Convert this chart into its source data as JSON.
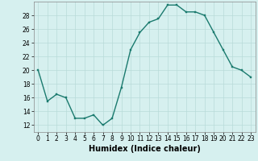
{
  "x": [
    0,
    1,
    2,
    3,
    4,
    5,
    6,
    7,
    8,
    9,
    10,
    11,
    12,
    13,
    14,
    15,
    16,
    17,
    18,
    19,
    20,
    21,
    22,
    23
  ],
  "y": [
    20,
    15.5,
    16.5,
    16,
    13,
    13,
    13.5,
    12,
    13,
    17.5,
    23,
    25.5,
    27,
    27.5,
    29.5,
    29.5,
    28.5,
    28.5,
    28,
    25.5,
    23,
    20.5,
    20,
    19
  ],
  "line_color": "#1a7a6e",
  "marker_color": "#1a7a6e",
  "bg_color": "#d6f0ef",
  "grid_color": "#b8dbd9",
  "xlabel": "Humidex (Indice chaleur)",
  "xlim": [
    -0.5,
    23.5
  ],
  "ylim": [
    11,
    30
  ],
  "yticks": [
    12,
    14,
    16,
    18,
    20,
    22,
    24,
    26,
    28
  ],
  "xticks": [
    0,
    1,
    2,
    3,
    4,
    5,
    6,
    7,
    8,
    9,
    10,
    11,
    12,
    13,
    14,
    15,
    16,
    17,
    18,
    19,
    20,
    21,
    22,
    23
  ],
  "tick_label_fontsize": 5.5,
  "xlabel_fontsize": 7.0,
  "linewidth": 1.0,
  "markersize": 2.0
}
